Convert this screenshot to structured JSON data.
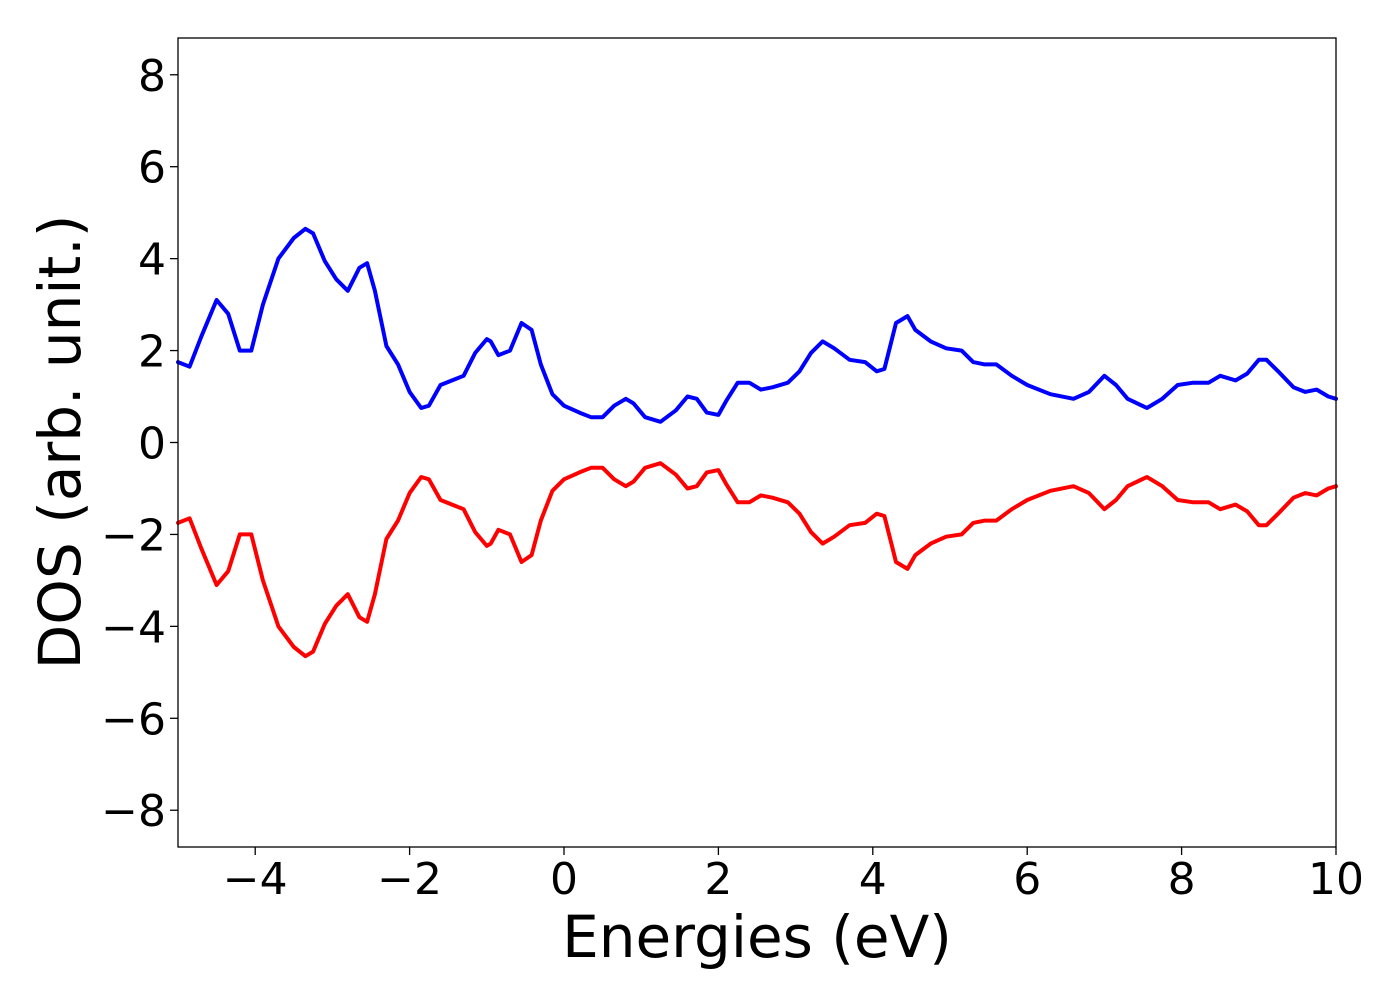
{
  "chart_data": {
    "type": "line",
    "title": "",
    "xlabel": "Energies (eV)",
    "ylabel": "DOS (arb. unit.)",
    "xlim": [
      -5,
      10
    ],
    "ylim": [
      -8.8,
      8.8
    ],
    "xticks": [
      -4,
      -2,
      0,
      2,
      4,
      6,
      8,
      10
    ],
    "xtick_labels": [
      "−4",
      "−2",
      "0",
      "2",
      "4",
      "6",
      "8",
      "10"
    ],
    "yticks": [
      8,
      6,
      4,
      2,
      0,
      -2,
      -4,
      -6,
      -8
    ],
    "ytick_labels": [
      "8",
      "6",
      "4",
      "2",
      "0",
      "−2",
      "−4",
      "−6",
      "−8"
    ],
    "grid": false,
    "legend": "none",
    "series": [
      {
        "color": "#0000ff",
        "x": [
          -5.0,
          -4.85,
          -4.7,
          -4.5,
          -4.35,
          -4.2,
          -4.05,
          -3.9,
          -3.7,
          -3.5,
          -3.35,
          -3.25,
          -3.1,
          -2.95,
          -2.8,
          -2.65,
          -2.55,
          -2.45,
          -2.3,
          -2.15,
          -2.0,
          -1.85,
          -1.75,
          -1.6,
          -1.45,
          -1.3,
          -1.15,
          -1.0,
          -0.95,
          -0.85,
          -0.7,
          -0.55,
          -0.42,
          -0.3,
          -0.15,
          0.0,
          0.2,
          0.35,
          0.5,
          0.65,
          0.8,
          0.9,
          1.05,
          1.25,
          1.45,
          1.6,
          1.72,
          1.85,
          2.0,
          2.1,
          2.25,
          2.4,
          2.55,
          2.7,
          2.9,
          3.05,
          3.2,
          3.35,
          3.5,
          3.7,
          3.9,
          4.05,
          4.15,
          4.3,
          4.45,
          4.55,
          4.75,
          4.95,
          5.15,
          5.3,
          5.45,
          5.6,
          5.8,
          6.0,
          6.3,
          6.6,
          6.8,
          7.0,
          7.15,
          7.3,
          7.55,
          7.75,
          7.95,
          8.15,
          8.35,
          8.5,
          8.7,
          8.85,
          9.0,
          9.1,
          9.25,
          9.45,
          9.6,
          9.75,
          9.9,
          10.0
        ],
        "y": [
          1.75,
          1.65,
          2.3,
          3.1,
          2.8,
          2.0,
          2.0,
          3.0,
          4.0,
          4.45,
          4.65,
          4.55,
          3.95,
          3.55,
          3.3,
          3.8,
          3.9,
          3.3,
          2.1,
          1.7,
          1.1,
          0.75,
          0.8,
          1.25,
          1.35,
          1.45,
          1.95,
          2.25,
          2.2,
          1.9,
          2.0,
          2.6,
          2.45,
          1.7,
          1.05,
          0.8,
          0.65,
          0.55,
          0.55,
          0.8,
          0.95,
          0.85,
          0.55,
          0.45,
          0.7,
          1.0,
          0.95,
          0.65,
          0.6,
          0.9,
          1.3,
          1.3,
          1.15,
          1.2,
          1.3,
          1.55,
          1.95,
          2.2,
          2.05,
          1.8,
          1.75,
          1.55,
          1.6,
          2.6,
          2.75,
          2.45,
          2.2,
          2.05,
          2.0,
          1.75,
          1.7,
          1.7,
          1.45,
          1.25,
          1.05,
          0.95,
          1.1,
          1.45,
          1.25,
          0.95,
          0.75,
          0.95,
          1.25,
          1.3,
          1.3,
          1.45,
          1.35,
          1.5,
          1.8,
          1.8,
          1.55,
          1.2,
          1.1,
          1.15,
          1.0,
          0.95
        ]
      },
      {
        "color": "#ff0000",
        "x": [
          -5.0,
          -4.85,
          -4.7,
          -4.5,
          -4.35,
          -4.2,
          -4.05,
          -3.9,
          -3.7,
          -3.5,
          -3.35,
          -3.25,
          -3.1,
          -2.95,
          -2.8,
          -2.65,
          -2.55,
          -2.45,
          -2.3,
          -2.15,
          -2.0,
          -1.85,
          -1.75,
          -1.6,
          -1.45,
          -1.3,
          -1.15,
          -1.0,
          -0.95,
          -0.85,
          -0.7,
          -0.55,
          -0.42,
          -0.3,
          -0.15,
          0.0,
          0.2,
          0.35,
          0.5,
          0.65,
          0.8,
          0.9,
          1.05,
          1.25,
          1.45,
          1.6,
          1.72,
          1.85,
          2.0,
          2.1,
          2.25,
          2.4,
          2.55,
          2.7,
          2.9,
          3.05,
          3.2,
          3.35,
          3.5,
          3.7,
          3.9,
          4.05,
          4.15,
          4.3,
          4.45,
          4.55,
          4.75,
          4.95,
          5.15,
          5.3,
          5.45,
          5.6,
          5.8,
          6.0,
          6.3,
          6.6,
          6.8,
          7.0,
          7.15,
          7.3,
          7.55,
          7.75,
          7.95,
          8.15,
          8.35,
          8.5,
          8.7,
          8.85,
          9.0,
          9.1,
          9.25,
          9.45,
          9.6,
          9.75,
          9.9,
          10.0
        ],
        "y": [
          -1.75,
          -1.65,
          -2.3,
          -3.1,
          -2.8,
          -2.0,
          -2.0,
          -3.0,
          -4.0,
          -4.45,
          -4.65,
          -4.55,
          -3.95,
          -3.55,
          -3.3,
          -3.8,
          -3.9,
          -3.3,
          -2.1,
          -1.7,
          -1.1,
          -0.75,
          -0.8,
          -1.25,
          -1.35,
          -1.45,
          -1.95,
          -2.25,
          -2.2,
          -1.9,
          -2.0,
          -2.6,
          -2.45,
          -1.7,
          -1.05,
          -0.8,
          -0.65,
          -0.55,
          -0.55,
          -0.8,
          -0.95,
          -0.85,
          -0.55,
          -0.45,
          -0.7,
          -1.0,
          -0.95,
          -0.65,
          -0.6,
          -0.9,
          -1.3,
          -1.3,
          -1.15,
          -1.2,
          -1.3,
          -1.55,
          -1.95,
          -2.2,
          -2.05,
          -1.8,
          -1.75,
          -1.55,
          -1.6,
          -2.6,
          -2.75,
          -2.45,
          -2.2,
          -2.05,
          -2.0,
          -1.75,
          -1.7,
          -1.7,
          -1.45,
          -1.25,
          -1.05,
          -0.95,
          -1.1,
          -1.45,
          -1.25,
          -0.95,
          -0.75,
          -0.95,
          -1.25,
          -1.3,
          -1.3,
          -1.45,
          -1.35,
          -1.5,
          -1.8,
          -1.8,
          -1.55,
          -1.2,
          -1.1,
          -1.15,
          -1.0,
          -0.95
        ]
      }
    ]
  }
}
